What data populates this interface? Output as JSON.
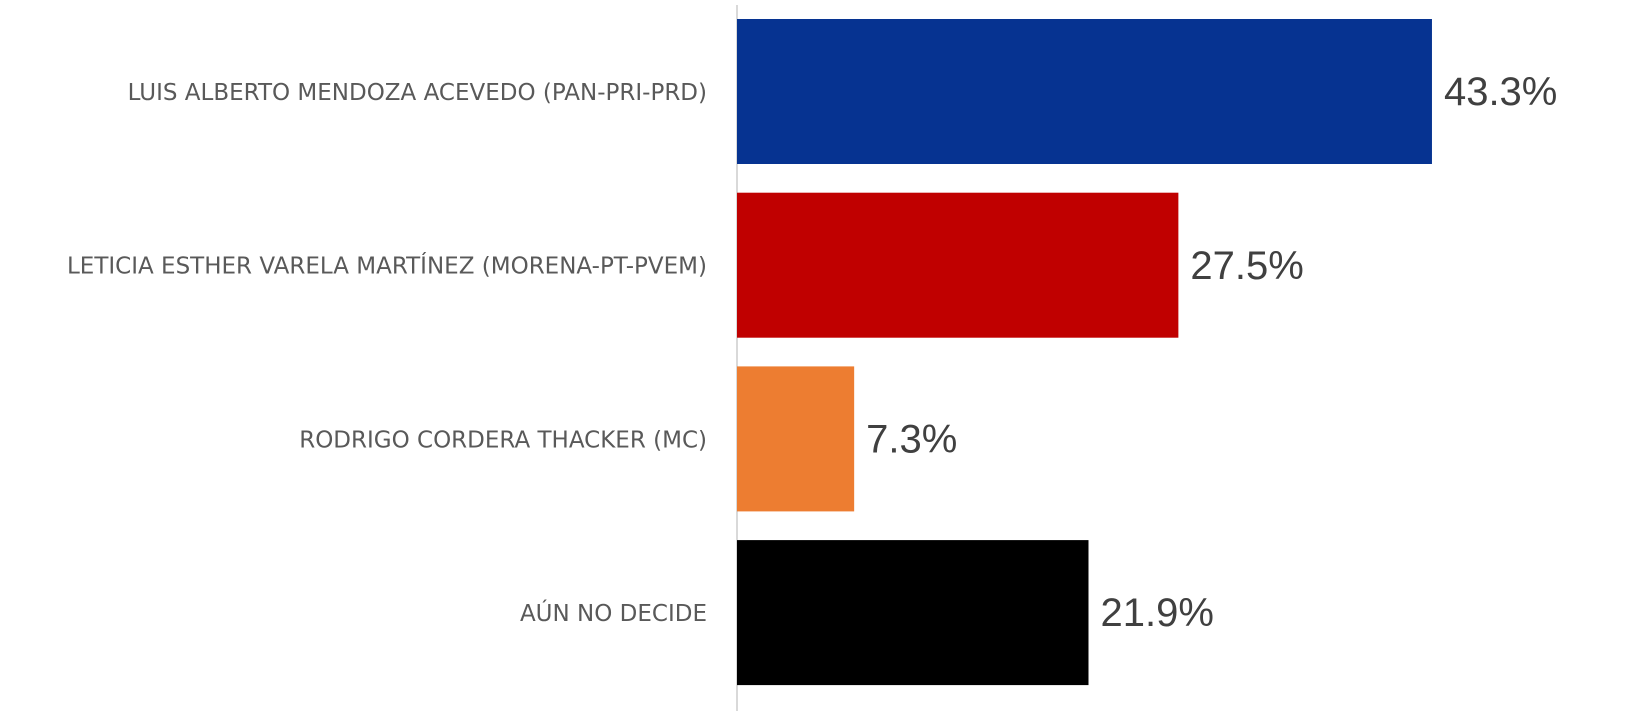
{
  "chart_data": {
    "type": "bar",
    "orientation": "horizontal",
    "categories": [
      "LUIS ALBERTO MENDOZA ACEVEDO (PAN-PRI-PRD)",
      "LETICIA ESTHER VARELA MARTÍNEZ (MORENA-PT-PVEM)",
      "RODRIGO CORDERA THACKER (MC)",
      "AÚN NO DECIDE"
    ],
    "values": [
      43.3,
      27.5,
      7.3,
      21.9
    ],
    "value_labels": [
      "43.3%",
      "27.5%",
      "7.3%",
      "21.9%"
    ],
    "colors": [
      "#063391",
      "#c00000",
      "#ed7d31",
      "#000000"
    ]
  }
}
